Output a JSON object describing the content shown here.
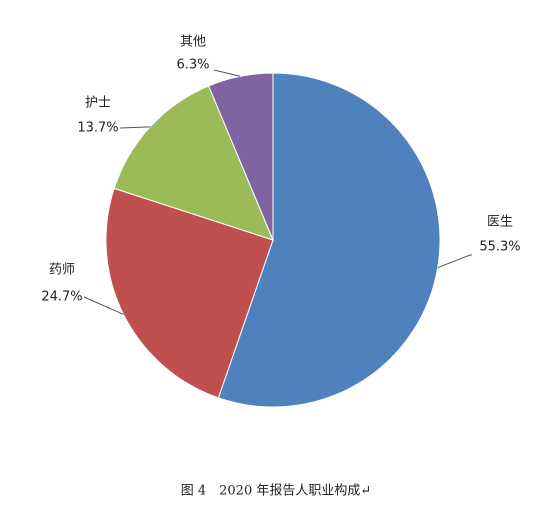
{
  "chart_data": {
    "type": "pie",
    "categories": [
      "医生",
      "药师",
      "护士",
      "其他"
    ],
    "values": [
      55.3,
      24.7,
      13.7,
      6.3
    ],
    "value_labels": [
      "55.3%",
      "24.7%",
      "13.7%",
      "6.3%"
    ],
    "colors": [
      "#4f81bd",
      "#c0504d",
      "#9bbb59",
      "#8064a2"
    ],
    "caption": "图 4　2020 年报告人职业构成↵"
  }
}
